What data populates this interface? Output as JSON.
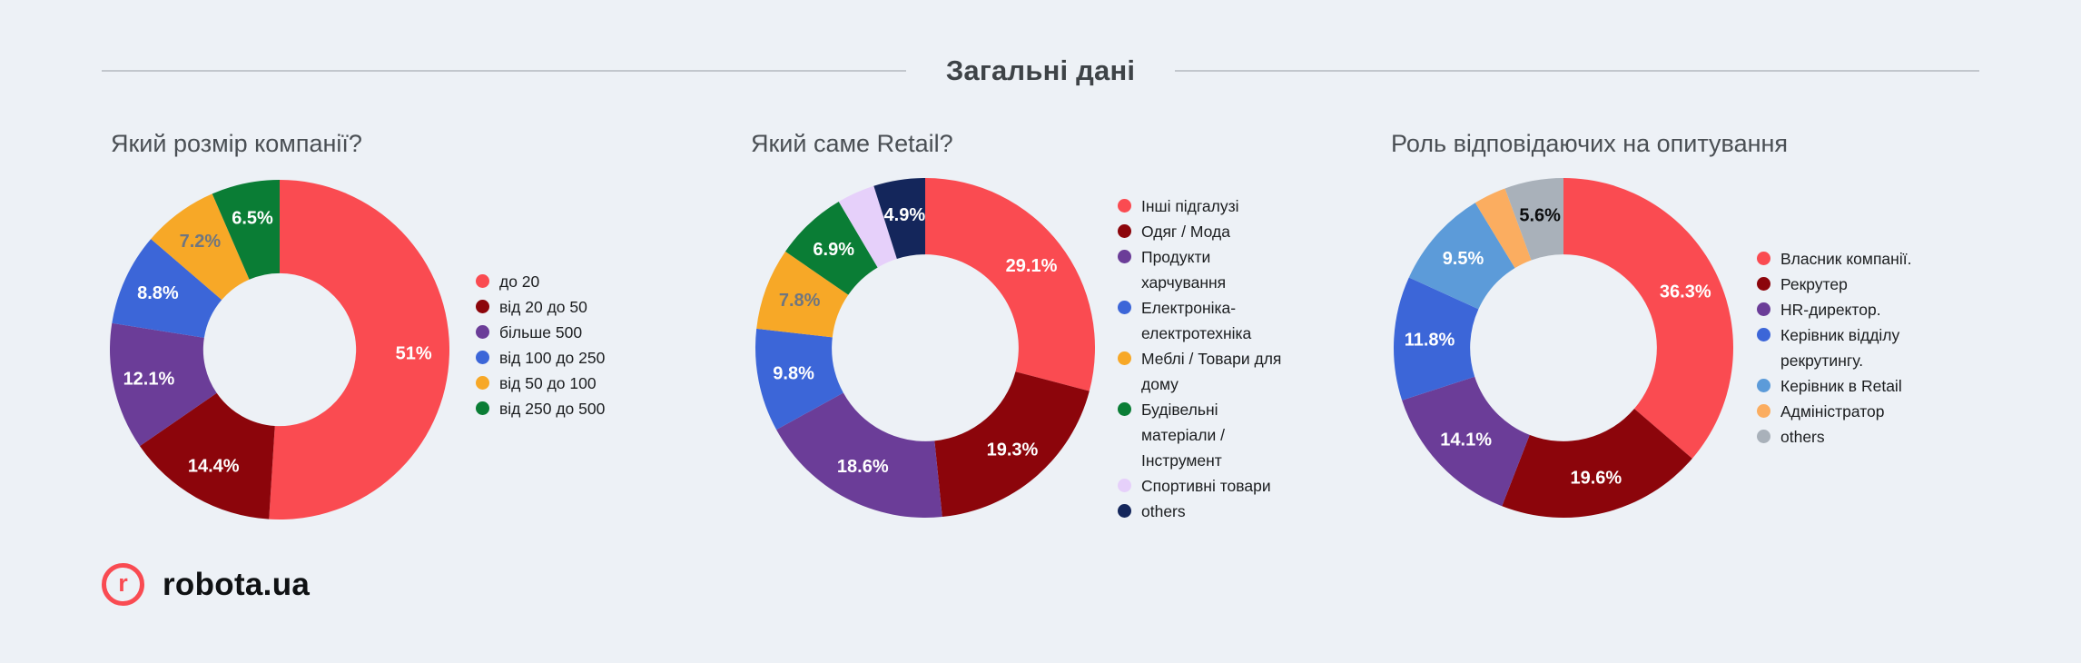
{
  "page": {
    "background": "#EDF1F6",
    "section_title": "Загальні дані"
  },
  "logo": {
    "mark_letter": "r",
    "brand": "robota.ua",
    "accent_color": "#F94B52"
  },
  "chart_data": [
    {
      "type": "pie",
      "title": "Який розмір компанії?",
      "hole": 0.45,
      "legend_position": "right",
      "slices": [
        {
          "label": "до 20",
          "value": 51,
          "display": "51%",
          "color": "#FA4B51",
          "label_color": "#FFFFFF"
        },
        {
          "label": "від 20 до 50",
          "value": 14.4,
          "display": "14.4%",
          "color": "#8C050B",
          "label_color": "#FFFFFF"
        },
        {
          "label": "більше 500",
          "value": 12.1,
          "display": "12.1%",
          "color": "#6B3D98",
          "label_color": "#FFFFFF"
        },
        {
          "label": "від 100 до 250",
          "value": 8.8,
          "display": "8.8%",
          "color": "#3C66D8",
          "label_color": "#FFFFFF"
        },
        {
          "label": "від 50 до 100",
          "value": 7.2,
          "display": "7.2%",
          "color": "#F7A827",
          "label_color": "#6F7680"
        },
        {
          "label": "від 250 до 500",
          "value": 6.5,
          "display": "6.5%",
          "color": "#0A7D35",
          "label_color": "#FFFFFF"
        }
      ]
    },
    {
      "type": "pie",
      "title": "Який саме Retail?",
      "hole": 0.55,
      "legend_position": "right",
      "slices": [
        {
          "label": "Інші підгалузі",
          "value": 29.1,
          "display": "29.1%",
          "color": "#FA4B51",
          "label_color": "#FFFFFF"
        },
        {
          "label": "Одяг / Мода",
          "value": 19.3,
          "display": "19.3%",
          "color": "#8C050B",
          "label_color": "#FFFFFF"
        },
        {
          "label": "Продукти\nхарчування",
          "value": 18.6,
          "display": "18.6%",
          "color": "#6B3D98",
          "label_color": "#FFFFFF"
        },
        {
          "label": "Електроніка-\nелектротехніка",
          "value": 9.8,
          "display": "9.8%",
          "color": "#3C66D8",
          "label_color": "#FFFFFF"
        },
        {
          "label": "Меблі / Товари для\nдому",
          "value": 7.8,
          "display": "7.8%",
          "color": "#F7A827",
          "label_color": "#6F7680"
        },
        {
          "label": "Будівельні\nматеріали /\nІнструмент",
          "value": 6.9,
          "display": "6.9%",
          "color": "#0A7D35",
          "label_color": "#FFFFFF"
        },
        {
          "label": "Спортивні товари",
          "value": 3.6,
          "display": "",
          "color": "#E6D0FA",
          "label_color": ""
        },
        {
          "label": "others",
          "value": 4.9,
          "display": "4.9%",
          "color": "#14265B",
          "label_color": "#FFFFFF"
        }
      ]
    },
    {
      "type": "pie",
      "title": "Роль відповідаючих на опитування",
      "hole": 0.55,
      "legend_position": "right",
      "slices": [
        {
          "label": "Власник компанії.",
          "value": 36.3,
          "display": "36.3%",
          "color": "#FA4B51",
          "label_color": "#FFFFFF"
        },
        {
          "label": "Рекрутер",
          "value": 19.6,
          "display": "19.6%",
          "color": "#8C050B",
          "label_color": "#FFFFFF"
        },
        {
          "label": "HR-директор.",
          "value": 14.1,
          "display": "14.1%",
          "color": "#6B3D98",
          "label_color": "#FFFFFF"
        },
        {
          "label": "Керівник відділу\nрекрутингу.",
          "value": 11.8,
          "display": "11.8%",
          "color": "#3C66D8",
          "label_color": "#FFFFFF"
        },
        {
          "label": "Керівник в Retail",
          "value": 9.5,
          "display": "9.5%",
          "color": "#5C9BD9",
          "label_color": "#FFFFFF"
        },
        {
          "label": "Адміністратор",
          "value": 3.1,
          "display": "",
          "color": "#FBAD60",
          "label_color": ""
        },
        {
          "label": "others",
          "value": 5.6,
          "display": "5.6%",
          "color": "#A9B1BA",
          "label_color": "#0B0C0D"
        }
      ]
    }
  ]
}
